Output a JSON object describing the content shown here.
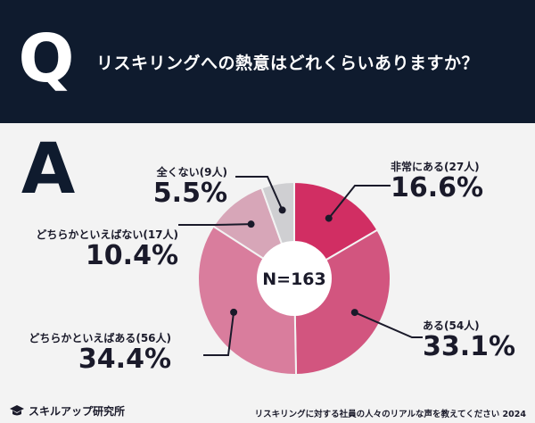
{
  "header": {
    "q_letter": "Q",
    "question": "リスキリングへの熱意はどれくらいありますか？"
  },
  "answer_letter": "A",
  "center_label": "N=163",
  "chart_data": {
    "type": "pie",
    "title": "",
    "n_label": "N=163",
    "slices": [
      {
        "label": "非常にある(27人)",
        "pct_label": "16.6%",
        "value": 16.6,
        "color": "#d12e63"
      },
      {
        "label": "ある(54人)",
        "pct_label": "33.1%",
        "value": 33.1,
        "color": "#d2557f"
      },
      {
        "label": "どちらかといえばある(56人)",
        "pct_label": "34.4%",
        "value": 34.4,
        "color": "#d97d9d"
      },
      {
        "label": "どちらかといえばない(17人)",
        "pct_label": "10.4%",
        "value": 10.4,
        "color": "#d7a6b8"
      },
      {
        "label": "全くない(9人)",
        "pct_label": "5.5%",
        "value": 5.5,
        "color": "#cfcfd2"
      }
    ]
  },
  "footer": {
    "logo_text": "スキルアップ研究所",
    "note": "リスキリングに対する社員の人々のリアルな声を教えてください 2024"
  }
}
